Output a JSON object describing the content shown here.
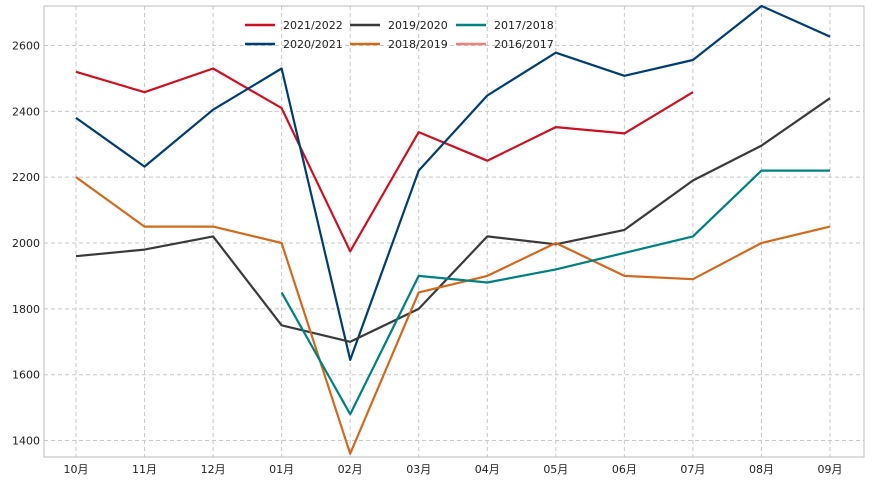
{
  "chart_data": {
    "type": "line",
    "title": "",
    "xlabel": "",
    "ylabel": "",
    "categories": [
      "10月",
      "11月",
      "12月",
      "01月",
      "02月",
      "03月",
      "04月",
      "05月",
      "06月",
      "07月",
      "08月",
      "09月"
    ],
    "ylim": [
      1350,
      2720
    ],
    "yticks": [
      1400,
      1600,
      1800,
      2000,
      2200,
      2400,
      2600
    ],
    "grid": true,
    "legend_position": "top-center",
    "series": [
      {
        "name": "2021/2022",
        "color": "#cc1122",
        "values": [
          2520,
          2458,
          2530,
          2410,
          1975,
          2337,
          2250,
          2352,
          2333,
          2458,
          null,
          null
        ]
      },
      {
        "name": "2020/2021",
        "color": "#003d73",
        "values": [
          2380,
          2232,
          2405,
          2530,
          1645,
          2220,
          2448,
          2578,
          2508,
          2556,
          2720,
          2627
        ]
      },
      {
        "name": "2019/2020",
        "color": "#3a3a3a",
        "values": [
          1960,
          1980,
          2020,
          1750,
          1700,
          1800,
          2020,
          1996,
          2040,
          2190,
          2296,
          2440
        ]
      },
      {
        "name": "2018/2019",
        "color": "#d2691e",
        "values": [
          2200,
          2050,
          2050,
          2000,
          1360,
          1850,
          1900,
          2000,
          1900,
          1890,
          2000,
          2050
        ]
      },
      {
        "name": "2017/2018",
        "color": "#008080",
        "values": [
          null,
          null,
          null,
          1850,
          1480,
          1900,
          1880,
          1920,
          1970,
          2020,
          2220,
          2220
        ]
      },
      {
        "name": "2016/2017",
        "color": "#f08080",
        "values": [
          null,
          null,
          null,
          null,
          null,
          null,
          null,
          null,
          null,
          null,
          null,
          null
        ]
      }
    ]
  }
}
